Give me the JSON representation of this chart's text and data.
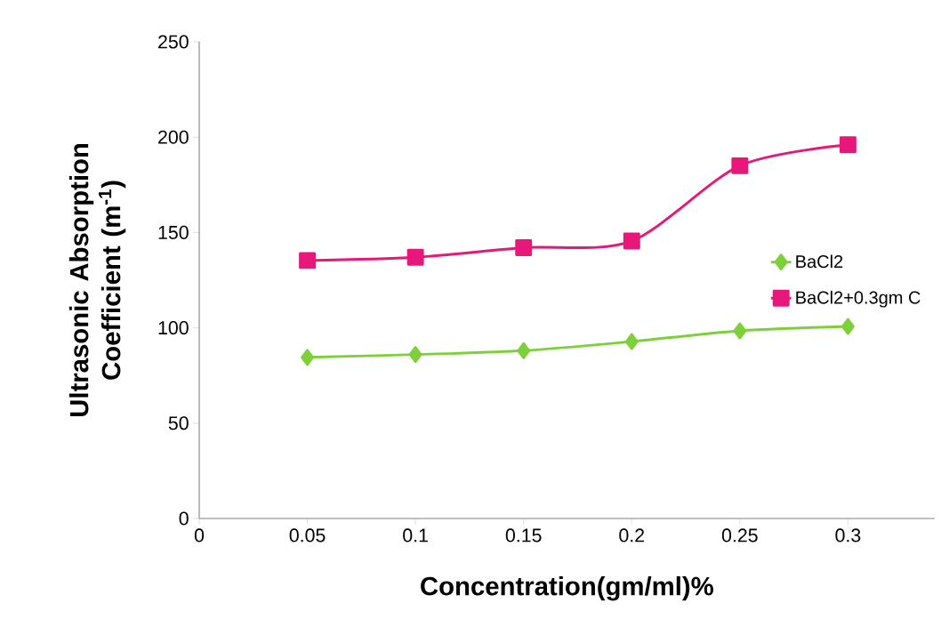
{
  "chart_data": {
    "type": "line",
    "xlabel": "Concentration(gm/ml)%",
    "ylabel": "Ultrasonic Absorption Coefficient (m$^{-1}$)",
    "x": [
      0.05,
      0.1,
      0.15,
      0.2,
      0.25,
      0.3
    ],
    "series": [
      {
        "name": "BaCl2",
        "color": "#7ed03a",
        "marker": "diamond",
        "values": [
          84.5,
          86,
          88,
          92.8,
          98.4,
          100.7
        ]
      },
      {
        "name": "BaCl2+0.3gm C",
        "color": "#e8177a",
        "marker": "square",
        "values": [
          135.3,
          137,
          142,
          145.5,
          185,
          196
        ]
      }
    ],
    "xlim": [
      0,
      0.34
    ],
    "xticks": [
      0,
      0.05,
      0.1,
      0.15,
      0.2,
      0.25,
      0.3
    ],
    "ylim": [
      0,
      250
    ],
    "yticks": [
      0,
      50,
      100,
      150,
      200,
      250
    ],
    "grid": false,
    "legend": "right",
    "line_style": "solid"
  }
}
